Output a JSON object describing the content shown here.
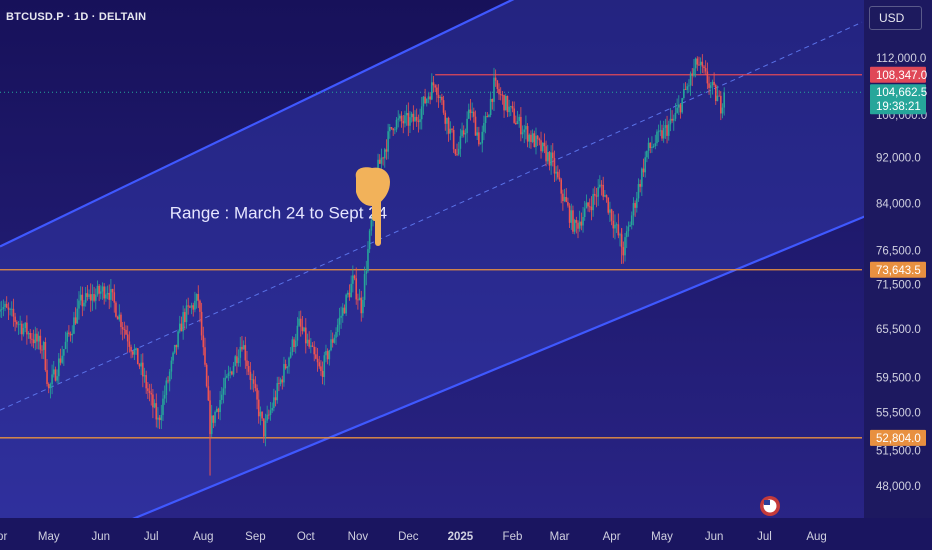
{
  "header": {
    "ticker_label": "BTCUSD.P · 1D · DELTAIN",
    "currency_button": "USD"
  },
  "colors": {
    "background_top": "#17115a",
    "background_bottom": "#2a2588",
    "channel_line": "#3f58ff",
    "channel_fill": "#3b49c8",
    "midline": "#5a72e8",
    "up_candle": "#26a69a",
    "down_candle": "#ef5350",
    "resistance_line": "#e04858",
    "support_line": "#e89040",
    "price_tag_green": "#26a69a",
    "price_tag_red": "#e04858",
    "price_tag_orange": "#e89040",
    "pointer_hand": "#f2b25a"
  },
  "icons": {
    "pointer": "pointing-down-hand-icon",
    "flag": "us-flag-economic-event-icon"
  },
  "chart_data": {
    "type": "candlestick",
    "symbol": "BTCUSD.P",
    "timeframe": "1D",
    "x_range": [
      "2024-04-01",
      "2025-08-31"
    ],
    "y_scale": "log",
    "y_ticks": [
      48000,
      51500,
      55500,
      59500,
      65500,
      71500,
      76500,
      84000,
      92000,
      100000,
      112000
    ],
    "y_tick_labels": [
      "48,000.0",
      "51,500.0",
      "55,500.0",
      "59,500.0",
      "65,500.0",
      "71,500.0",
      "76,500.0",
      "84,000.0",
      "92,000.0",
      "100,000.0",
      "112,000.0"
    ],
    "x_tick_labels": [
      "Apr",
      "May",
      "Jun",
      "Jul",
      "Aug",
      "Sep",
      "Oct",
      "Nov",
      "Dec",
      "2025",
      "Feb",
      "Mar",
      "Apr",
      "May",
      "Jun",
      "Jul",
      "Aug"
    ],
    "price_path": [
      {
        "date": "2024-04-01",
        "close": 69000
      },
      {
        "date": "2024-04-12",
        "close": 66500
      },
      {
        "date": "2024-04-28",
        "close": 63000
      },
      {
        "date": "2024-05-01",
        "close": 58000
      },
      {
        "date": "2024-05-20",
        "close": 69000
      },
      {
        "date": "2024-06-05",
        "close": 71000
      },
      {
        "date": "2024-06-24",
        "close": 61000
      },
      {
        "date": "2024-07-05",
        "close": 54500
      },
      {
        "date": "2024-07-20",
        "close": 67000
      },
      {
        "date": "2024-07-29",
        "close": 69500
      },
      {
        "date": "2024-08-05",
        "close": 54000
      },
      {
        "date": "2024-08-24",
        "close": 64000
      },
      {
        "date": "2024-09-06",
        "close": 53500
      },
      {
        "date": "2024-09-27",
        "close": 66000
      },
      {
        "date": "2024-10-10",
        "close": 60000
      },
      {
        "date": "2024-10-29",
        "close": 72000
      },
      {
        "date": "2024-11-03",
        "close": 68500
      },
      {
        "date": "2024-11-13",
        "close": 90000
      },
      {
        "date": "2024-11-22",
        "close": 98500
      },
      {
        "date": "2024-12-05",
        "close": 99000
      },
      {
        "date": "2024-12-17",
        "close": 107000
      },
      {
        "date": "2024-12-30",
        "close": 92500
      },
      {
        "date": "2025-01-07",
        "close": 101000
      },
      {
        "date": "2025-01-13",
        "close": 94500
      },
      {
        "date": "2025-01-21",
        "close": 106000
      },
      {
        "date": "2025-02-03",
        "close": 99000
      },
      {
        "date": "2025-02-24",
        "close": 91500
      },
      {
        "date": "2025-03-02",
        "close": 86000
      },
      {
        "date": "2025-03-10",
        "close": 80000
      },
      {
        "date": "2025-03-26",
        "close": 87000
      },
      {
        "date": "2025-04-08",
        "close": 76500
      },
      {
        "date": "2025-04-22",
        "close": 93000
      },
      {
        "date": "2025-05-08",
        "close": 99000
      },
      {
        "date": "2025-05-22",
        "close": 111000
      },
      {
        "date": "2025-06-01",
        "close": 104500
      },
      {
        "date": "2025-06-05",
        "close": 102000
      },
      {
        "date": "2025-06-07",
        "close": 104662.5
      }
    ],
    "horizontal_lines": [
      {
        "price": 108347.0,
        "label": "108,347.0",
        "role": "resistance"
      },
      {
        "price": 73643.5,
        "label": "73,643.5",
        "role": "support"
      },
      {
        "price": 52804.0,
        "label": "52,804.0",
        "role": "support"
      }
    ],
    "last_price": {
      "price": 104662.5,
      "label": "104,662.5",
      "countdown": "19:38:21"
    },
    "channel": {
      "upper_start": {
        "date": "2024-04-01",
        "price": 77000
      },
      "upper_end": {
        "date": "2025-01-31",
        "price": 125500
      },
      "lower_start": {
        "date": "2024-05-10",
        "price": 42500
      },
      "lower_end": {
        "date": "2025-08-31",
        "price": 82000
      }
    },
    "annotation": {
      "text": "Range : March 24 to Sept 24",
      "date": "2024-07-12",
      "price": 81500
    }
  }
}
